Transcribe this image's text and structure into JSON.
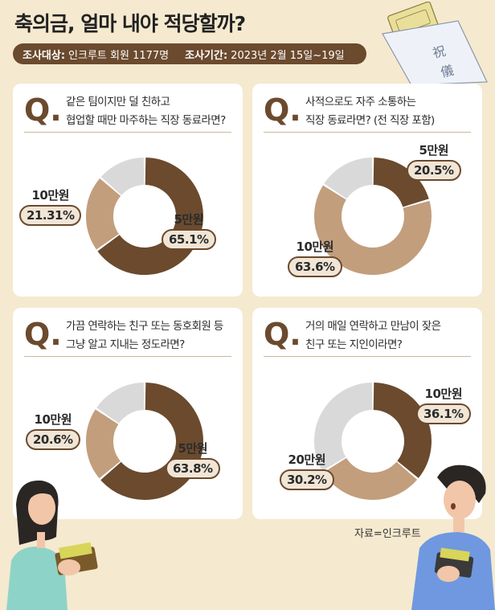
{
  "title": "축의금, 얼마 내야 적당할까?",
  "meta": {
    "target_label": "조사대상:",
    "target_value": "인크루트 회원 1177명",
    "period_label": "조사기간:",
    "period_value": "2023년 2월 15일~19일"
  },
  "source": "자료=인크루트",
  "colors": {
    "dark": "#6b4a2e",
    "light": "#c29e7d",
    "gray": "#d9d9d9",
    "background": "#f5e9cf"
  },
  "chart_data": [
    {
      "type": "pie",
      "question": [
        "같은 팀이지만 덜 친하고",
        "협업할 때만 마주하는 직장 동료라면?"
      ],
      "slices": [
        {
          "name": "5만원",
          "value": 65.1,
          "label": "65.1%",
          "color": "#6b4a2e"
        },
        {
          "name": "10만원",
          "value": 21.31,
          "label": "21.31%",
          "color": "#c29e7d"
        },
        {
          "name": "",
          "value": 13.59,
          "label": "",
          "color": "#d9d9d9"
        }
      ]
    },
    {
      "type": "pie",
      "question": [
        "사적으로도 자주 소통하는",
        "직장 동료라면? (전 직장 포함)"
      ],
      "slices": [
        {
          "name": "5만원",
          "value": 20.5,
          "label": "20.5%",
          "color": "#6b4a2e"
        },
        {
          "name": "10만원",
          "value": 63.6,
          "label": "63.6%",
          "color": "#c29e7d"
        },
        {
          "name": "",
          "value": 15.9,
          "label": "",
          "color": "#d9d9d9"
        }
      ]
    },
    {
      "type": "pie",
      "question": [
        "가끔 연락하는 친구 또는 동호회원 등",
        "그냥 알고 지내는 정도라면?"
      ],
      "slices": [
        {
          "name": "5만원",
          "value": 63.8,
          "label": "63.8%",
          "color": "#6b4a2e"
        },
        {
          "name": "10만원",
          "value": 20.6,
          "label": "20.6%",
          "color": "#c29e7d"
        },
        {
          "name": "",
          "value": 15.6,
          "label": "",
          "color": "#d9d9d9"
        }
      ]
    },
    {
      "type": "pie",
      "question": [
        "거의 매일 연락하고 만남이 잦은",
        "친구 또는 지인이라면?"
      ],
      "slices": [
        {
          "name": "10만원",
          "value": 36.1,
          "label": "36.1%",
          "color": "#6b4a2e"
        },
        {
          "name": "20만원",
          "value": 30.2,
          "label": "30.2%",
          "color": "#c29e7d"
        },
        {
          "name": "",
          "value": 33.7,
          "label": "",
          "color": "#d9d9d9"
        }
      ]
    }
  ]
}
